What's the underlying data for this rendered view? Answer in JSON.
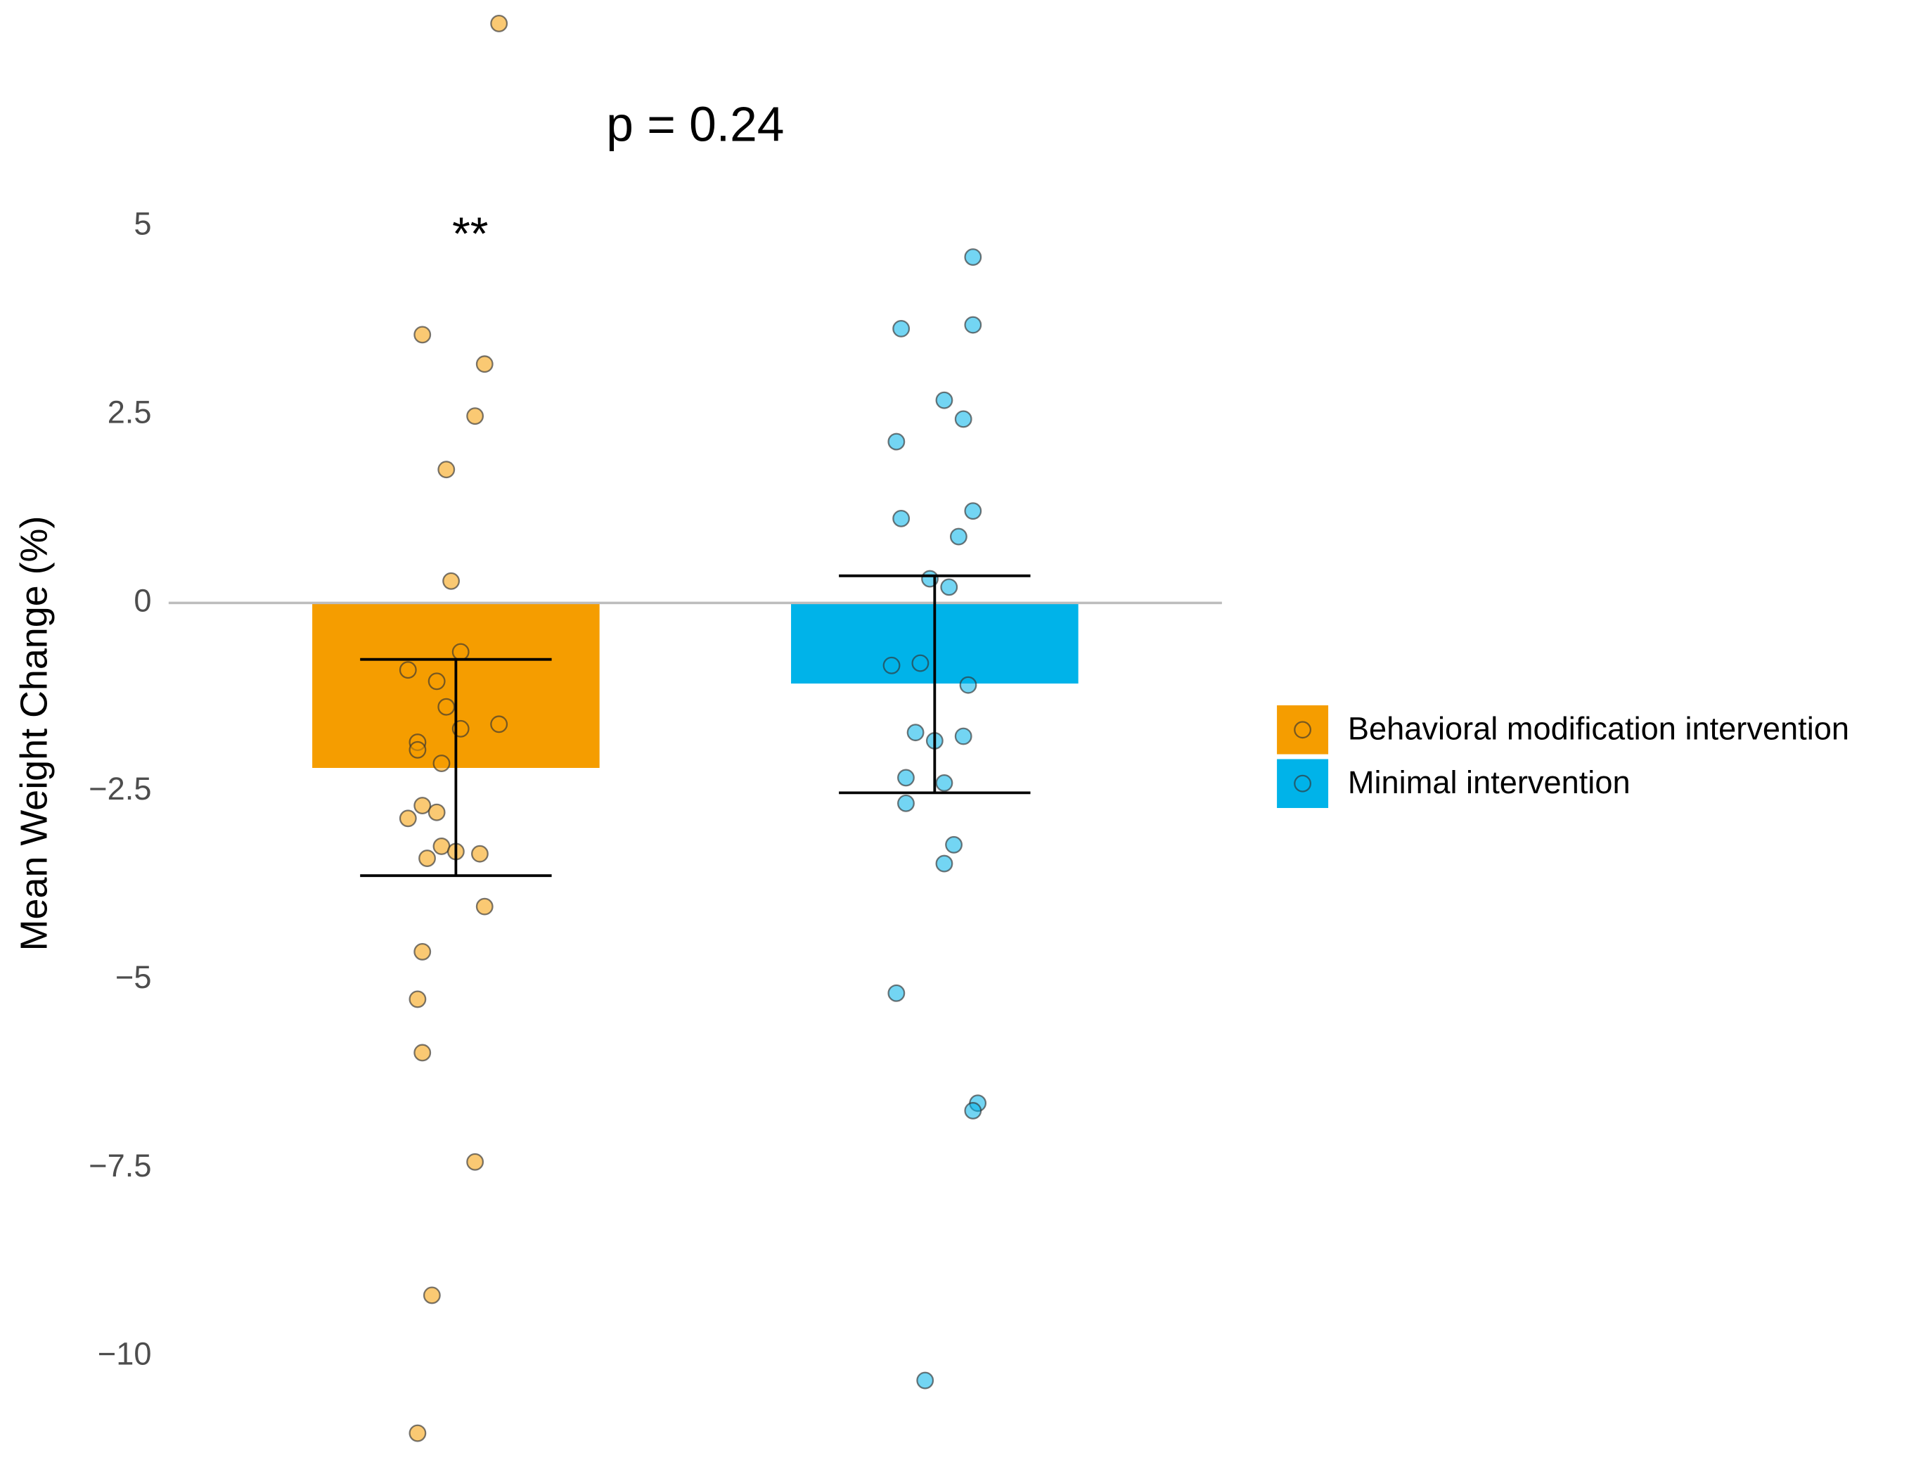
{
  "chart_data": {
    "type": "bar",
    "y_label": "Mean Weight Change (%)",
    "annotations": [
      {
        "text": "p = 0.24",
        "x": 1.5,
        "y": 6.3
      },
      {
        "text": "**",
        "x": 1.03,
        "y": 4.85
      }
    ],
    "xlim": [
      0.4,
      2.6
    ],
    "ylim": [
      -11.4,
      8.0
    ],
    "yticks": [
      {
        "value": 5,
        "label": "5"
      },
      {
        "value": 2.5,
        "label": "2.5"
      },
      0,
      {
        "value": -2.5,
        "label": "−2.5"
      },
      {
        "value": -5,
        "label": "−5"
      },
      {
        "value": -7.5,
        "label": "−7.5"
      },
      {
        "value": -10,
        "label": "−10"
      }
    ],
    "zero_line": true,
    "legend_position": "right",
    "series": [
      {
        "name": "Behavioral modification intervention",
        "color": "#f59d00",
        "x": 1,
        "value": -2.19,
        "error_low": -3.62,
        "error_high": -0.75,
        "points": {
          "x": [
            1.09,
            0.93,
            1.06,
            1.04,
            0.98,
            0.99,
            1.01,
            0.9,
            0.96,
            0.98,
            1.01,
            1.09,
            0.92,
            0.92,
            0.97,
            0.93,
            0.96,
            0.9,
            0.97,
            1.0,
            1.05,
            0.94,
            1.06,
            0.93,
            0.92,
            0.93,
            1.04,
            0.95,
            0.92
          ],
          "y": [
            7.69,
            3.56,
            3.17,
            2.48,
            1.77,
            0.29,
            -0.65,
            -0.89,
            -1.04,
            -1.38,
            -1.67,
            -1.61,
            -1.85,
            -1.95,
            -2.13,
            -2.69,
            -2.78,
            -2.86,
            -3.23,
            -3.3,
            -3.33,
            -3.39,
            -4.03,
            -4.63,
            -5.26,
            -5.97,
            -7.42,
            -9.19,
            -11.02
          ]
        }
      },
      {
        "name": "Minimal intervention",
        "color": "#00b3e9",
        "x": 2,
        "value": -1.07,
        "error_low": -2.52,
        "error_high": 0.36,
        "points": {
          "x": [
            2.08,
            1.93,
            2.08,
            2.02,
            2.06,
            1.92,
            2.08,
            1.93,
            2.05,
            1.99,
            2.03,
            1.91,
            1.97,
            2.07,
            1.96,
            2.06,
            2.0,
            1.94,
            2.02,
            1.94,
            2.04,
            2.02,
            1.92,
            2.09,
            2.08,
            1.98
          ],
          "y": [
            4.59,
            3.64,
            3.69,
            2.69,
            2.44,
            2.14,
            1.22,
            1.12,
            0.88,
            0.32,
            0.21,
            -0.83,
            -0.8,
            -1.09,
            -1.72,
            -1.77,
            -1.83,
            -2.32,
            -2.39,
            -2.66,
            -3.21,
            -3.46,
            -5.18,
            -6.64,
            -6.74,
            -10.32
          ]
        }
      }
    ]
  }
}
